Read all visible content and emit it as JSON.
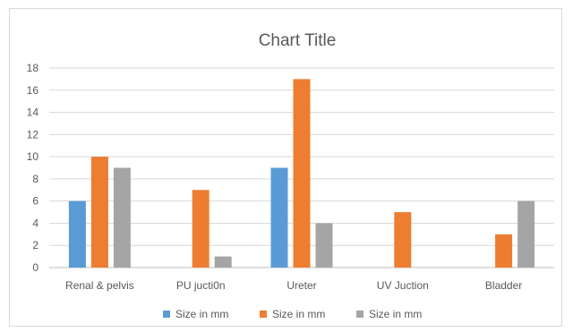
{
  "chart_data": {
    "type": "bar",
    "title": "Chart Title",
    "xlabel": "",
    "ylabel": "",
    "categories": [
      "Renal & pelvis",
      "PU jucti0n",
      "Ureter",
      "UV Juction",
      "Bladder"
    ],
    "series": [
      {
        "name": "Size in mm",
        "color": "#5b9bd5",
        "values": [
          6,
          null,
          9,
          null,
          null
        ]
      },
      {
        "name": "Size in mm",
        "color": "#ed7d31",
        "values": [
          10,
          7,
          17,
          5,
          3
        ]
      },
      {
        "name": "Size in mm",
        "color": "#a5a5a5",
        "values": [
          9,
          1,
          4,
          null,
          6
        ]
      }
    ],
    "ylim": [
      0,
      18
    ],
    "yticks": [
      0,
      2,
      4,
      6,
      8,
      10,
      12,
      14,
      16,
      18
    ],
    "grid": true,
    "legend_position": "bottom"
  }
}
